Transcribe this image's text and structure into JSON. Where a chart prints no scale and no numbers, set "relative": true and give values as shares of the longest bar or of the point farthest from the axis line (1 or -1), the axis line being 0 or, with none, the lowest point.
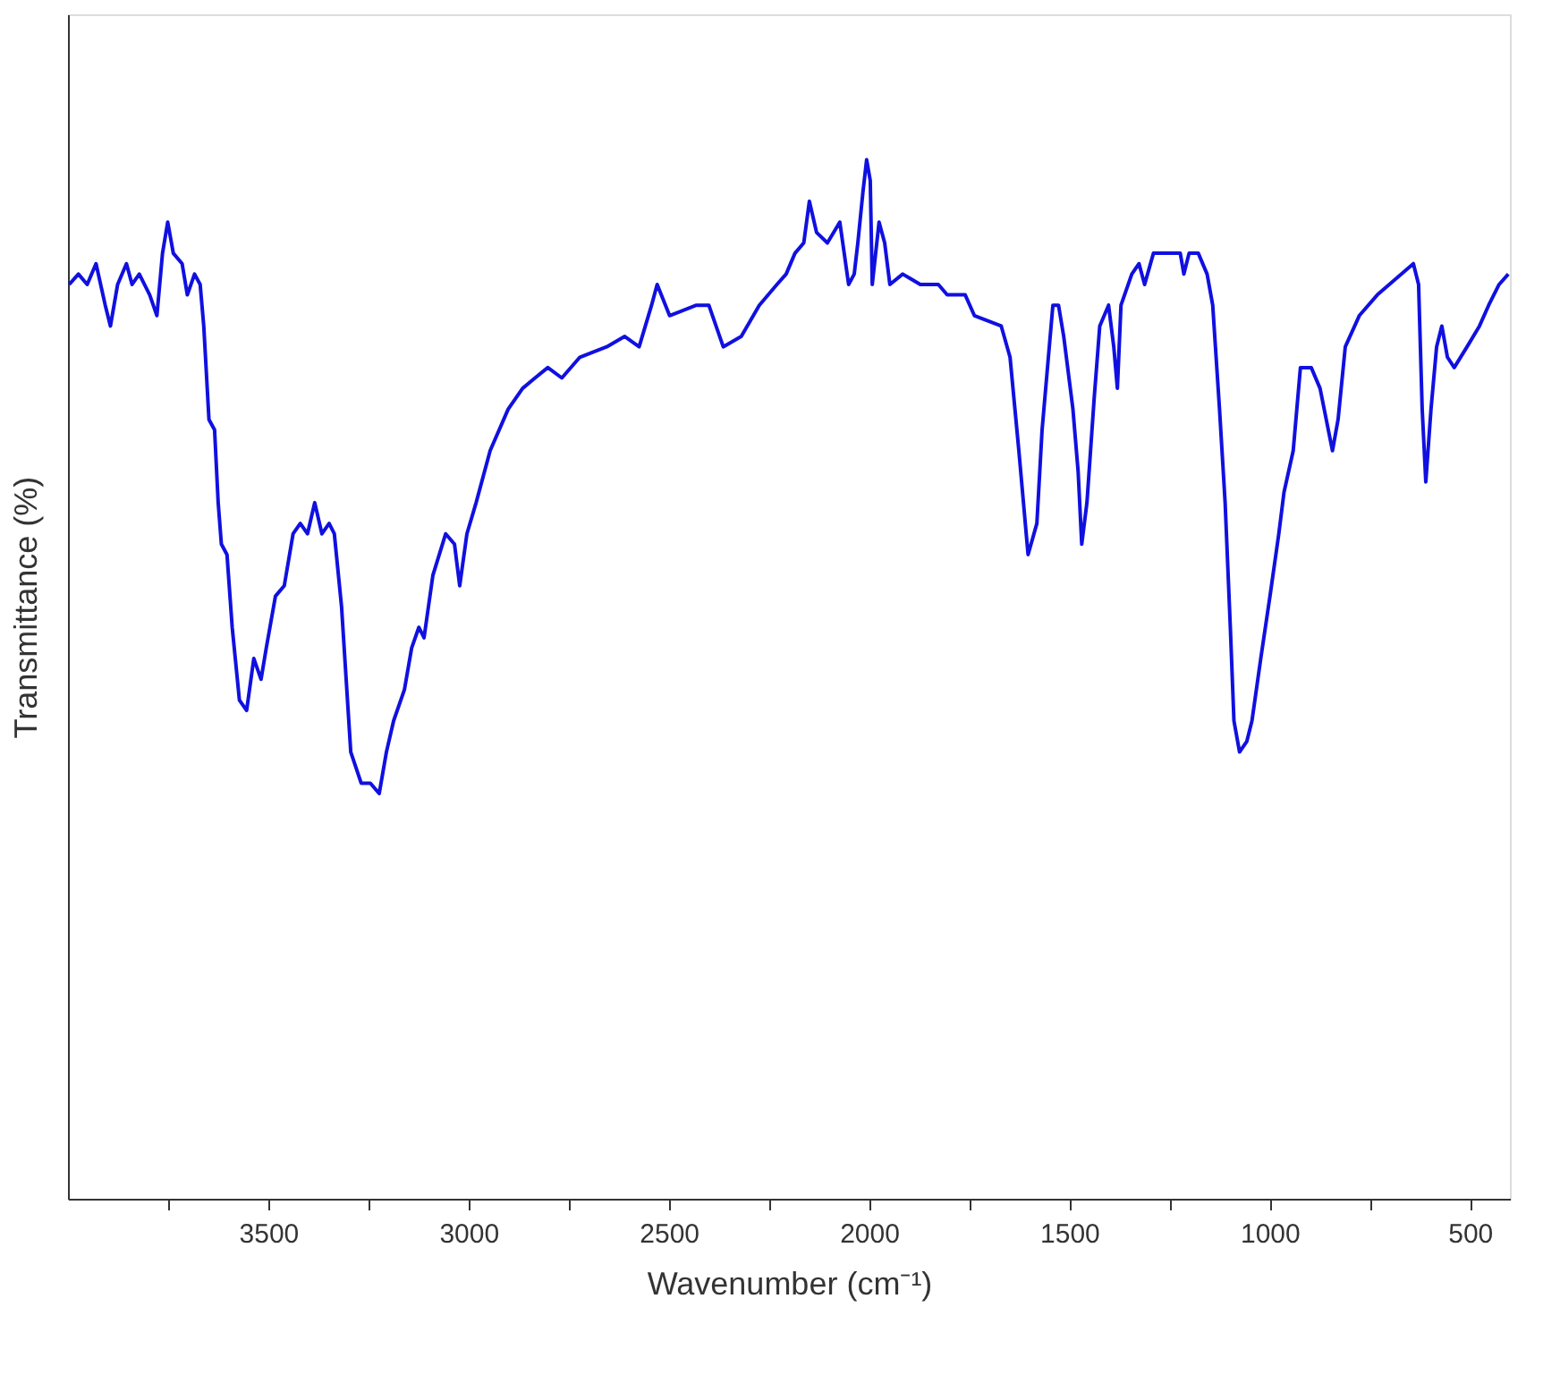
{
  "chart_data": {
    "type": "line",
    "relative": true,
    "xlabel": "Wavenumber (cm⁻¹)",
    "ylabel": "Transmittance (%)",
    "xlim": [
      4000,
      400
    ],
    "xticks": [
      {
        "value": 3750,
        "label": null
      },
      3500,
      {
        "value": 3250,
        "label": null
      },
      3000,
      {
        "value": 2750,
        "label": null
      },
      2500,
      {
        "value": 2250,
        "label": null
      },
      2000,
      {
        "value": 1750,
        "label": null
      },
      1500,
      {
        "value": 1250,
        "label": null
      },
      1000,
      {
        "value": 750,
        "label": null
      },
      500
    ],
    "grid": false,
    "marker": "none",
    "line_style": "solid",
    "tick_labels": "x",
    "x": [
      3997,
      3974,
      3952,
      3930,
      3907,
      3894,
      3876,
      3854,
      3840,
      3822,
      3796,
      3778,
      3764,
      3751,
      3737,
      3715,
      3702,
      3684,
      3670,
      3661,
      3648,
      3634,
      3625,
      3617,
      3603,
      3590,
      3572,
      3554,
      3536,
      3518,
      3505,
      3482,
      3460,
      3438,
      3420,
      3402,
      3384,
      3366,
      3348,
      3335,
      3317,
      3294,
      3268,
      3245,
      3223,
      3205,
      3187,
      3160,
      3142,
      3124,
      3111,
      3089,
      3057,
      3035,
      3022,
      3004,
      2981,
      2946,
      2901,
      2865,
      2834,
      2802,
      2767,
      2722,
      2655,
      2610,
      2574,
      2543,
      2529,
      2498,
      2431,
      2400,
      2364,
      2319,
      2274,
      2230,
      2207,
      2185,
      2163,
      2149,
      2131,
      2104,
      2073,
      2051,
      2037,
      2028,
      2015,
      2006,
      1997,
      1992,
      1975,
      1961,
      1948,
      1916,
      1872,
      1827,
      1805,
      1760,
      1737,
      1670,
      1648,
      1626,
      1603,
      1581,
      1568,
      1541,
      1527,
      1514,
      1491,
      1478,
      1469,
      1456,
      1438,
      1424,
      1402,
      1389,
      1380,
      1371,
      1344,
      1326,
      1312,
      1290,
      1268,
      1223,
      1214,
      1201,
      1178,
      1156,
      1142,
      1125,
      1111,
      1098,
      1089,
      1075,
      1057,
      1044,
      1022,
      999,
      977,
      964,
      941,
      923,
      896,
      874,
      843,
      829,
      811,
      776,
      731,
      641,
      628,
      619,
      610,
      597,
      583,
      570,
      556,
      539,
      507,
      476,
      453,
      427,
      404
    ],
    "series": [
      {
        "color": "#1010e0",
        "values": [
          0.88,
          0.89,
          0.88,
          0.9,
          0.86,
          0.84,
          0.88,
          0.9,
          0.88,
          0.89,
          0.87,
          0.85,
          0.91,
          0.94,
          0.91,
          0.9,
          0.87,
          0.89,
          0.88,
          0.84,
          0.75,
          0.74,
          0.67,
          0.63,
          0.62,
          0.55,
          0.48,
          0.47,
          0.52,
          0.5,
          0.53,
          0.58,
          0.59,
          0.64,
          0.65,
          0.64,
          0.67,
          0.64,
          0.65,
          0.64,
          0.57,
          0.43,
          0.4,
          0.4,
          0.39,
          0.43,
          0.46,
          0.49,
          0.53,
          0.55,
          0.54,
          0.6,
          0.64,
          0.63,
          0.59,
          0.64,
          0.67,
          0.72,
          0.76,
          0.78,
          0.79,
          0.8,
          0.79,
          0.81,
          0.82,
          0.83,
          0.82,
          0.86,
          0.88,
          0.85,
          0.86,
          0.86,
          0.82,
          0.83,
          0.86,
          0.88,
          0.89,
          0.91,
          0.92,
          0.96,
          0.93,
          0.92,
          0.94,
          0.88,
          0.89,
          0.92,
          0.97,
          1.0,
          0.98,
          0.88,
          0.94,
          0.92,
          0.88,
          0.89,
          0.88,
          0.88,
          0.87,
          0.87,
          0.85,
          0.84,
          0.81,
          0.72,
          0.62,
          0.65,
          0.74,
          0.86,
          0.86,
          0.83,
          0.76,
          0.7,
          0.63,
          0.67,
          0.77,
          0.84,
          0.86,
          0.82,
          0.78,
          0.86,
          0.89,
          0.9,
          0.88,
          0.91,
          0.91,
          0.91,
          0.89,
          0.91,
          0.91,
          0.89,
          0.86,
          0.76,
          0.67,
          0.55,
          0.46,
          0.43,
          0.44,
          0.46,
          0.52,
          0.58,
          0.64,
          0.68,
          0.72,
          0.8,
          0.8,
          0.78,
          0.72,
          0.75,
          0.82,
          0.85,
          0.87,
          0.9,
          0.88,
          0.76,
          0.69,
          0.76,
          0.82,
          0.84,
          0.81,
          0.8,
          0.82,
          0.84,
          0.86,
          0.88,
          0.89
        ]
      }
    ]
  }
}
